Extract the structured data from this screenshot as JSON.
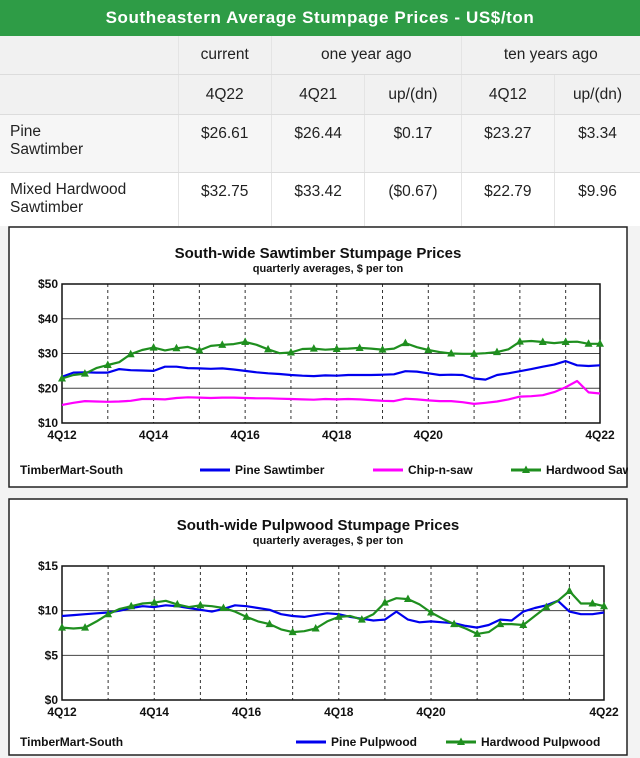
{
  "banner": {
    "title": "Southeastern Average Stumpage Prices - US$/ton"
  },
  "table": {
    "groups": [
      "current",
      "one year ago",
      "ten years ago"
    ],
    "periods": [
      "4Q22",
      "4Q21",
      "up/(dn)",
      "4Q12",
      "up/(dn)"
    ],
    "rows": [
      {
        "label1": "Pine",
        "label2": "Sawtimber",
        "values": [
          "$26.61",
          "$26.44",
          "$0.17",
          "$23.27",
          "$3.34"
        ]
      },
      {
        "label1": "Mixed Hardwood",
        "label2": "Sawtimber",
        "values": [
          "$32.75",
          "$33.42",
          "($0.67)",
          "$22.79",
          "$9.96"
        ]
      }
    ]
  },
  "colors": {
    "banner": "#2e9c46",
    "pine": "#0000ee",
    "chip": "#ff00ff",
    "hardwood": "#1f8f1f"
  },
  "chart_data": [
    {
      "type": "line",
      "title": "South-wide Sawtimber Stumpage Prices",
      "subtitle": "quarterly averages, $ per ton",
      "source": "TimberMart-South",
      "ylim": [
        10,
        50
      ],
      "yticks": [
        10,
        20,
        30,
        40,
        50
      ],
      "ytick_labels": [
        "$10",
        "$20",
        "$30",
        "$40",
        "$50"
      ],
      "x_labels": [
        "4Q12",
        "4Q14",
        "4Q16",
        "4Q18",
        "4Q20",
        "4Q22"
      ],
      "series": [
        {
          "name": "Pine Sawtimber",
          "color": "#0000ee",
          "marker": "none",
          "values": [
            23.3,
            24.5,
            24.6,
            24.5,
            24.5,
            25.5,
            25.2,
            25.1,
            25.0,
            26.2,
            26.2,
            25.8,
            25.7,
            25.6,
            25.7,
            25.4,
            25.0,
            24.6,
            24.3,
            24.1,
            23.8,
            23.6,
            23.5,
            23.7,
            23.6,
            23.8,
            23.8,
            23.8,
            23.9,
            24.0,
            24.9,
            24.8,
            24.3,
            23.8,
            23.9,
            23.8,
            22.8,
            22.5,
            23.8,
            24.3,
            24.9,
            25.5,
            26.2,
            26.8,
            27.8,
            26.6,
            26.4,
            26.6
          ]
        },
        {
          "name": "Chip-n-saw",
          "color": "#ff00ff",
          "marker": "none",
          "values": [
            15.2,
            15.8,
            16.3,
            16.2,
            16.1,
            16.2,
            16.4,
            16.9,
            16.9,
            16.8,
            17.2,
            17.4,
            17.3,
            17.2,
            17.3,
            17.3,
            17.2,
            17.1,
            17.1,
            17.0,
            16.9,
            16.8,
            16.7,
            16.9,
            16.8,
            16.9,
            16.8,
            16.6,
            16.4,
            16.3,
            17.0,
            16.8,
            16.5,
            16.3,
            16.3,
            16.0,
            15.5,
            15.8,
            16.2,
            16.8,
            17.6,
            17.7,
            18.0,
            18.9,
            20.3,
            22.1,
            18.8,
            18.5
          ]
        },
        {
          "name": "Hardwood Sawtimber",
          "color": "#1f8f1f",
          "marker": "triangle",
          "values": [
            22.8,
            23.8,
            24.2,
            25.8,
            26.7,
            27.5,
            29.8,
            31.0,
            31.7,
            30.9,
            31.5,
            31.9,
            30.9,
            32.2,
            32.5,
            32.7,
            33.3,
            32.5,
            31.2,
            30.1,
            30.3,
            31.3,
            31.4,
            31.1,
            31.3,
            31.4,
            31.6,
            31.4,
            31.1,
            31.4,
            33.0,
            31.8,
            31.0,
            30.4,
            30.0,
            29.9,
            29.9,
            30.1,
            30.4,
            31.2,
            33.4,
            33.6,
            33.3,
            33.0,
            33.3,
            33.4,
            32.8,
            32.8
          ]
        }
      ]
    },
    {
      "type": "line",
      "title": "South-wide Pulpwood Stumpage Prices",
      "subtitle": "quarterly averages, $ per ton",
      "source": "TimberMart-South",
      "ylim": [
        0,
        15
      ],
      "yticks": [
        0,
        5,
        10,
        15
      ],
      "ytick_labels": [
        "$0",
        "$5",
        "$10",
        "$15"
      ],
      "x_labels": [
        "4Q12",
        "4Q14",
        "4Q16",
        "4Q18",
        "4Q20",
        "4Q22"
      ],
      "series": [
        {
          "name": "Pine Pulpwood",
          "color": "#0000ee",
          "marker": "none",
          "values": [
            9.4,
            9.5,
            9.6,
            9.7,
            9.8,
            10.0,
            10.3,
            10.5,
            10.4,
            10.6,
            10.5,
            10.3,
            10.1,
            9.9,
            10.2,
            10.6,
            10.5,
            10.3,
            10.1,
            9.6,
            9.4,
            9.3,
            9.5,
            9.7,
            9.6,
            9.3,
            9.1,
            8.9,
            9.0,
            9.9,
            9.0,
            8.7,
            8.8,
            8.7,
            8.6,
            8.3,
            8.1,
            8.4,
            9.0,
            8.9,
            9.9,
            10.3,
            10.6,
            11.1,
            9.9,
            9.6,
            9.6,
            9.8
          ]
        },
        {
          "name": "Hardwood Pulpwood",
          "color": "#1f8f1f",
          "marker": "triangle",
          "values": [
            8.1,
            8.0,
            8.1,
            8.8,
            9.6,
            10.2,
            10.5,
            10.8,
            10.9,
            11.1,
            10.7,
            10.4,
            10.6,
            10.5,
            10.3,
            9.9,
            9.3,
            8.8,
            8.5,
            7.9,
            7.6,
            7.7,
            8.0,
            8.8,
            9.3,
            9.4,
            9.0,
            9.6,
            10.9,
            11.4,
            11.3,
            10.7,
            9.8,
            9.1,
            8.5,
            8.0,
            7.4,
            7.6,
            8.5,
            8.5,
            8.4,
            9.4,
            10.4,
            11.1,
            12.2,
            10.8,
            10.8,
            10.5
          ]
        }
      ]
    }
  ]
}
